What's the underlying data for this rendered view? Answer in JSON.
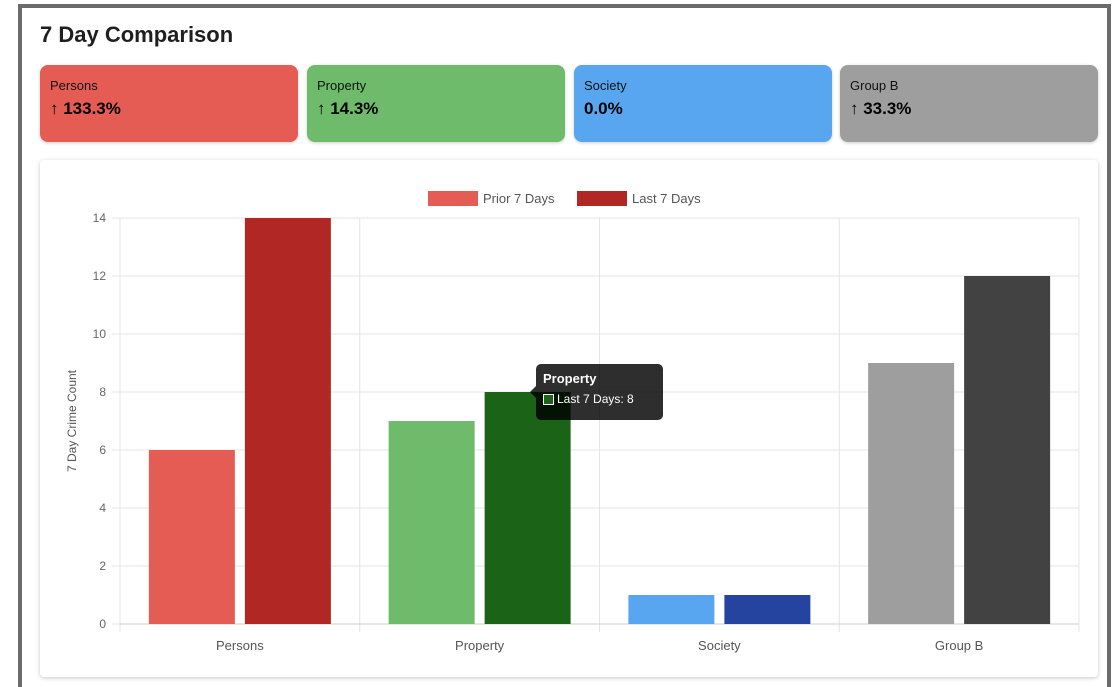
{
  "page_title": "7 Day Comparison",
  "cards": [
    {
      "label": "Persons",
      "value": "↑ 133.3%",
      "color": "#e55c55"
    },
    {
      "label": "Property",
      "value": "↑ 14.3%",
      "color": "#6dbb6b"
    },
    {
      "label": "Society",
      "value": "0.0%",
      "color": "#58a6f0"
    },
    {
      "label": "Group B",
      "value": "↑ 33.3%",
      "color": "#9e9e9e"
    }
  ],
  "tooltip": {
    "title": "Property",
    "text": "Last 7 Days: 8",
    "swatch_color": "#1b6316"
  },
  "chart_data": {
    "type": "bar",
    "categories": [
      "Persons",
      "Property",
      "Society",
      "Group B"
    ],
    "series": [
      {
        "name": "Prior 7 Days",
        "values": [
          6,
          7,
          1,
          9
        ],
        "colors": [
          "#e55c55",
          "#6dbb6b",
          "#58a6f0",
          "#9e9e9e"
        ]
      },
      {
        "name": "Last 7 Days",
        "values": [
          14,
          8,
          1,
          12
        ],
        "colors": [
          "#b02724",
          "#1b6316",
          "#2444a0",
          "#424242"
        ]
      }
    ],
    "legend_colors": [
      "#e55c55",
      "#b02724"
    ],
    "ylabel": "7 Day Crime Count",
    "xlabel": "",
    "ylim": [
      0,
      14
    ],
    "yticks": [
      0,
      2,
      4,
      6,
      8,
      10,
      12,
      14
    ],
    "grid": true,
    "legend_position": "top-center"
  }
}
